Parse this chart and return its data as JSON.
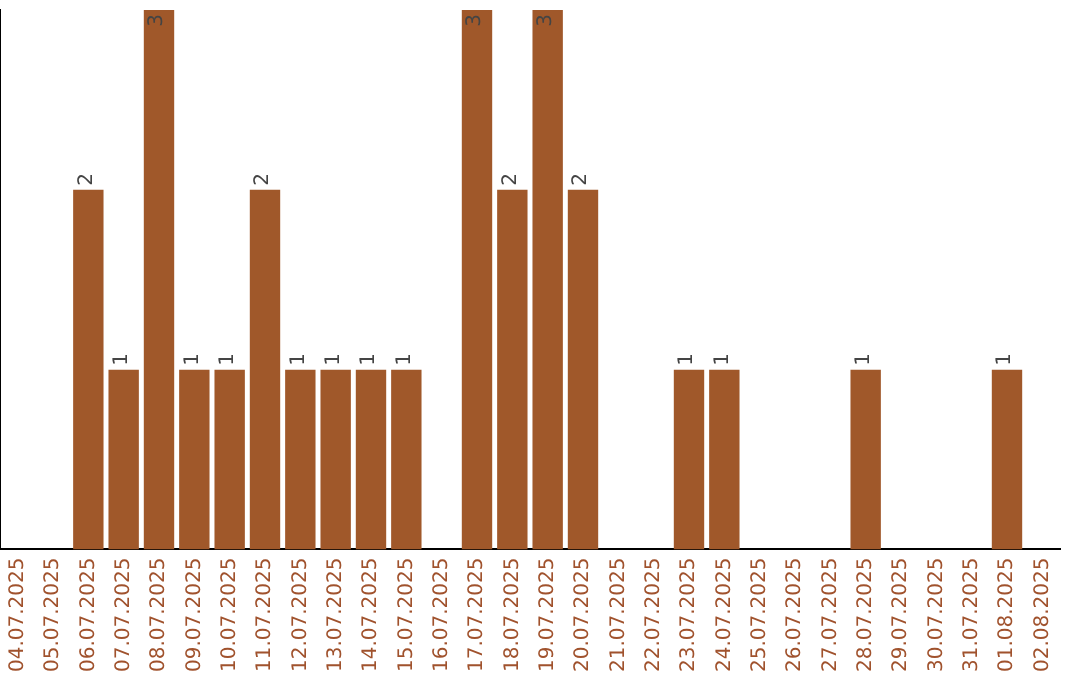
{
  "chart_data": {
    "type": "bar",
    "categories": [
      "04.07.2025",
      "05.07.2025",
      "06.07.2025",
      "07.07.2025",
      "08.07.2025",
      "09.07.2025",
      "10.07.2025",
      "11.07.2025",
      "12.07.2025",
      "13.07.2025",
      "14.07.2025",
      "15.07.2025",
      "16.07.2025",
      "17.07.2025",
      "18.07.2025",
      "19.07.2025",
      "20.07.2025",
      "21.07.2025",
      "22.07.2025",
      "23.07.2025",
      "24.07.2025",
      "25.07.2025",
      "26.07.2025",
      "27.07.2025",
      "28.07.2025",
      "29.07.2025",
      "30.07.2025",
      "31.07.2025",
      "01.08.2025",
      "02.08.2025"
    ],
    "values": [
      0,
      0,
      2,
      1,
      3,
      1,
      1,
      2,
      1,
      1,
      1,
      1,
      0,
      3,
      2,
      3,
      2,
      0,
      0,
      1,
      1,
      0,
      0,
      0,
      1,
      0,
      0,
      0,
      1,
      0
    ],
    "value_labels": [
      null,
      null,
      "2",
      "1",
      "3",
      "1",
      "1",
      "2",
      "1",
      "1",
      "1",
      "1",
      null,
      "3",
      "2",
      "3",
      "2",
      null,
      null,
      "1",
      "1",
      null,
      null,
      null,
      "1",
      null,
      null,
      null,
      "1",
      null
    ],
    "color": "#a0582a",
    "ylim": [
      0,
      3
    ],
    "tick_labels": "x",
    "grid": false,
    "legend": false
  }
}
